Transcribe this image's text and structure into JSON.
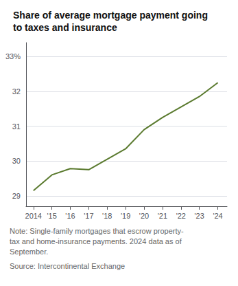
{
  "chart_data": {
    "type": "line",
    "title": "Share of average mortgage payment going\nto taxes and insurance",
    "x": [
      2014,
      2015,
      2016,
      2017,
      2018,
      2019,
      2020,
      2021,
      2022,
      2023,
      2024
    ],
    "values": [
      29.15,
      29.6,
      29.78,
      29.75,
      30.05,
      30.35,
      30.9,
      31.25,
      31.55,
      31.85,
      32.25
    ],
    "color": "#5a7a2e",
    "xlim": [
      2013.6,
      2024.5
    ],
    "xticks": [
      {
        "value": 2014,
        "label": "2014"
      },
      {
        "value": 2015,
        "label": "'15"
      },
      {
        "value": 2016,
        "label": "'16"
      },
      {
        "value": 2017,
        "label": "'17"
      },
      {
        "value": 2018,
        "label": "'18"
      },
      {
        "value": 2019,
        "label": "'19"
      },
      {
        "value": 2020,
        "label": "'20"
      },
      {
        "value": 2021,
        "label": "'21"
      },
      {
        "value": 2022,
        "label": "'22"
      },
      {
        "value": 2023,
        "label": "'23"
      },
      {
        "value": 2024,
        "label": "'24"
      }
    ],
    "ylim": [
      28.7,
      33.4
    ],
    "yticks": [
      29,
      30,
      31,
      32,
      {
        "value": 33,
        "label": "33%"
      }
    ],
    "grid": true,
    "annotations": [
      "Note: Single-family mortgages that escrow property-\ntax and home-insurance payments. 2024 data as of\nSeptember.",
      "Source: Intercontinental Exchange"
    ]
  }
}
